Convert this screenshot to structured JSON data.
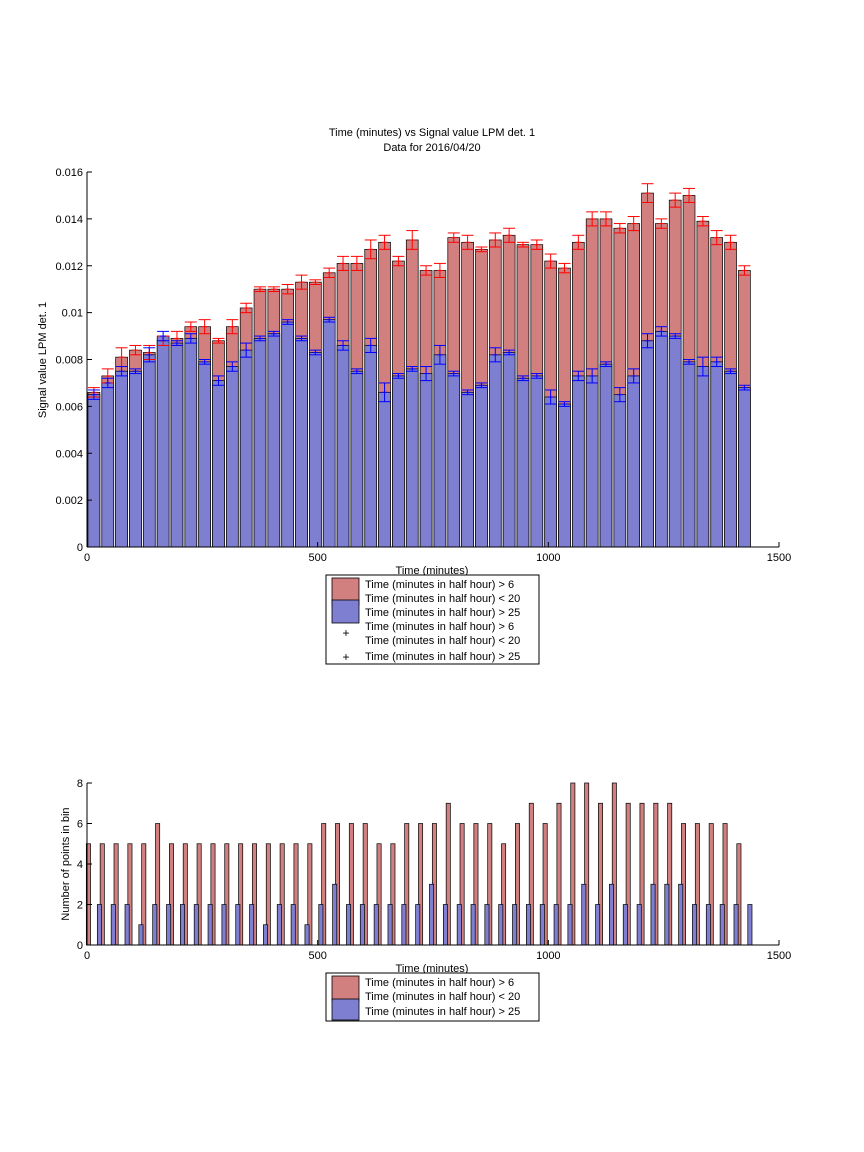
{
  "colors": {
    "red_fill": "#d17f7f",
    "blue_fill": "#7f7fd1",
    "red_marker": "#ff0000",
    "blue_marker": "#0000ff",
    "axis": "#000000",
    "background": "#ffffff"
  },
  "chart_data": [
    {
      "type": "bar",
      "title": "Time (minutes) vs Signal value LPM det. 1",
      "subtitle": "Data for 2016/04/20",
      "xlabel": "Time (minutes)",
      "ylabel": "Signal value LPM det. 1",
      "xlim": [
        0,
        1500
      ],
      "ylim": [
        0,
        0.016
      ],
      "xticks": [
        "0",
        "500",
        "1000",
        "1500"
      ],
      "yticks": [
        "0",
        "0.002",
        "0.004",
        "0.006",
        "0.008",
        "0.01",
        "0.012",
        "0.014",
        "0.016"
      ],
      "grid": false,
      "legend_position": "below plot",
      "legend": [
        "Time (minutes in half hour) > 6\nTime (minutes in half hour) < 20",
        "Time (minutes in half hour) > 25",
        "Time (minutes in half hour) > 6\nTime (minutes in half hour) < 20",
        "Time (minutes in half hour) > 25"
      ],
      "x": [
        15,
        45,
        75,
        105,
        135,
        165,
        195,
        225,
        255,
        285,
        315,
        345,
        375,
        405,
        435,
        465,
        495,
        525,
        555,
        585,
        615,
        645,
        675,
        705,
        735,
        765,
        795,
        825,
        855,
        885,
        915,
        945,
        975,
        1005,
        1035,
        1065,
        1095,
        1125,
        1155,
        1185,
        1215,
        1245,
        1275,
        1305,
        1335,
        1365,
        1395,
        1425
      ],
      "series": [
        {
          "values": [
            0.0066,
            0.0073,
            0.0081,
            0.0084,
            0.0083,
            0.0088,
            0.0089,
            0.0094,
            0.0094,
            0.0088,
            0.0094,
            0.0102,
            0.011,
            0.011,
            0.011,
            0.0113,
            0.0113,
            0.0117,
            0.0121,
            0.0121,
            0.0127,
            0.013,
            0.0122,
            0.0131,
            0.0118,
            0.0118,
            0.0132,
            0.013,
            0.0127,
            0.0131,
            0.0133,
            0.0129,
            0.0129,
            0.0122,
            0.0119,
            0.013,
            0.014,
            0.014,
            0.0136,
            0.0138,
            0.0151,
            0.0138,
            0.0148,
            0.015,
            0.0139,
            0.0132,
            0.013,
            0.0118
          ],
          "errors": [
            0.0002,
            0.0003,
            0.0004,
            0.0002,
            0.0003,
            0.0002,
            0.0003,
            0.0002,
            0.0003,
            0.0001,
            0.0003,
            0.0002,
            0.0001,
            0.0001,
            0.0002,
            0.0003,
            0.0001,
            0.0002,
            0.0003,
            0.0003,
            0.0004,
            0.0003,
            0.0002,
            0.0004,
            0.0002,
            0.0003,
            0.0002,
            0.0003,
            0.0001,
            0.0003,
            0.0003,
            0.0001,
            0.0002,
            0.0003,
            0.0002,
            0.0003,
            0.0003,
            0.0003,
            0.0002,
            0.0003,
            0.0004,
            0.0002,
            0.0003,
            0.0003,
            0.0002,
            0.0003,
            0.0003,
            0.0002
          ]
        },
        {
          "values": [
            0.0065,
            0.007,
            0.0075,
            0.0075,
            0.0082,
            0.009,
            0.0087,
            0.0089,
            0.0079,
            0.0071,
            0.0077,
            0.0084,
            0.0089,
            0.0091,
            0.0096,
            0.0089,
            0.0083,
            0.0097,
            0.0086,
            0.0075,
            0.0086,
            0.0066,
            0.0073,
            0.0076,
            0.0074,
            0.0082,
            0.0074,
            0.0066,
            0.0069,
            0.0082,
            0.0083,
            0.0072,
            0.0073,
            0.0064,
            0.0061,
            0.0073,
            0.0073,
            0.0078,
            0.0065,
            0.0073,
            0.0088,
            0.0092,
            0.009,
            0.0079,
            0.0077,
            0.0079,
            0.0075,
            0.0068
          ],
          "errors": [
            0.0002,
            0.0002,
            0.0002,
            0.0001,
            0.0003,
            0.0002,
            0.0001,
            0.0002,
            0.0001,
            0.0002,
            0.0002,
            0.0003,
            0.0001,
            0.0001,
            0.0001,
            0.0001,
            0.0001,
            0.0001,
            0.0002,
            0.0001,
            0.0003,
            0.0004,
            0.0001,
            0.0001,
            0.0003,
            0.0004,
            0.0001,
            0.0001,
            0.0001,
            0.0003,
            0.0001,
            0.0001,
            0.0001,
            0.0003,
            0.0001,
            0.0002,
            0.0003,
            0.0001,
            0.0003,
            0.0003,
            0.0003,
            0.0002,
            0.0001,
            0.0001,
            0.0004,
            0.0002,
            0.0001,
            0.0001
          ]
        }
      ]
    },
    {
      "type": "bar",
      "xlabel": "Time (minutes)",
      "ylabel": "Number of points in bin",
      "xlim": [
        0,
        1500
      ],
      "ylim": [
        0,
        8
      ],
      "xticks": [
        "0",
        "500",
        "1000",
        "1500"
      ],
      "yticks": [
        "0",
        "2",
        "4",
        "6",
        "8"
      ],
      "grid": false,
      "legend_position": "below plot",
      "legend": [
        "Time (minutes in half hour) > 6\nTime (minutes in half hour) < 20",
        "Time (minutes in half hour) > 25"
      ],
      "x": [
        15,
        45,
        75,
        105,
        135,
        165,
        195,
        225,
        255,
        285,
        315,
        345,
        375,
        405,
        435,
        465,
        495,
        525,
        555,
        585,
        615,
        645,
        675,
        705,
        735,
        765,
        795,
        825,
        855,
        885,
        915,
        945,
        975,
        1005,
        1035,
        1065,
        1095,
        1125,
        1155,
        1185,
        1215,
        1245,
        1275,
        1305,
        1335,
        1365,
        1395,
        1425
      ],
      "series": [
        {
          "values": [
            5,
            5,
            5,
            5,
            5,
            6,
            5,
            5,
            5,
            5,
            5,
            5,
            5,
            5,
            5,
            5,
            5,
            6,
            6,
            6,
            6,
            5,
            5,
            6,
            6,
            6,
            7,
            6,
            6,
            6,
            5,
            6,
            7,
            6,
            7,
            8,
            8,
            7,
            8,
            7,
            7,
            7,
            7,
            6,
            6,
            6,
            6,
            5
          ]
        },
        {
          "values": [
            2,
            2,
            2,
            1,
            2,
            2,
            2,
            2,
            2,
            2,
            2,
            2,
            1,
            2,
            2,
            1,
            2,
            3,
            2,
            2,
            2,
            2,
            2,
            2,
            3,
            2,
            2,
            2,
            2,
            2,
            2,
            2,
            2,
            2,
            2,
            3,
            2,
            3,
            2,
            2,
            3,
            3,
            3,
            2,
            2,
            2,
            2,
            2
          ]
        }
      ]
    }
  ]
}
